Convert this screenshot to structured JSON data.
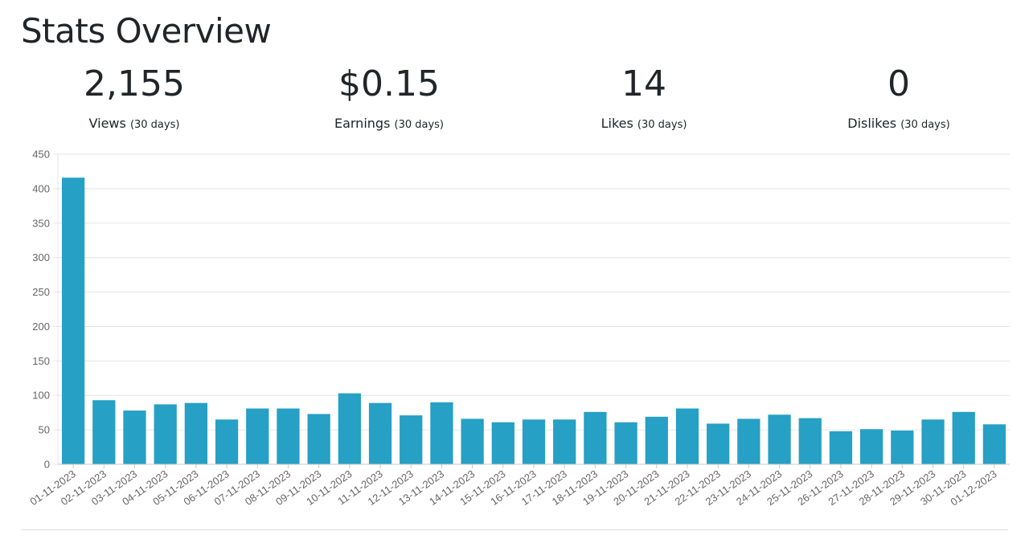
{
  "header": {
    "title": "Stats Overview"
  },
  "stats": [
    {
      "value": "2,155",
      "label": "Views",
      "period": "(30 days)"
    },
    {
      "value": "$0.15",
      "label": "Earnings",
      "period": "(30 days)"
    },
    {
      "value": "14",
      "label": "Likes",
      "period": "(30 days)"
    },
    {
      "value": "0",
      "label": "Dislikes",
      "period": "(30 days)"
    }
  ],
  "colors": {
    "bar": "#26a0c4",
    "grid": "#e5e5e5",
    "tick_text": "#666666"
  },
  "chart_data": {
    "type": "bar",
    "title": "",
    "xlabel": "",
    "ylabel": "",
    "ylim": [
      0,
      450
    ],
    "yticks": [
      0,
      50,
      100,
      150,
      200,
      250,
      300,
      350,
      400,
      450
    ],
    "grid": true,
    "categories": [
      "01-11-2023",
      "02-11-2023",
      "03-11-2023",
      "04-11-2023",
      "05-11-2023",
      "06-11-2023",
      "07-11-2023",
      "08-11-2023",
      "09-11-2023",
      "10-11-2023",
      "11-11-2023",
      "12-11-2023",
      "13-11-2023",
      "14-11-2023",
      "15-11-2023",
      "16-11-2023",
      "17-11-2023",
      "18-11-2023",
      "19-11-2023",
      "20-11-2023",
      "21-11-2023",
      "22-11-2023",
      "23-11-2023",
      "24-11-2023",
      "25-11-2023",
      "26-11-2023",
      "27-11-2023",
      "28-11-2023",
      "29-11-2023",
      "30-11-2023",
      "01-12-2023"
    ],
    "values": [
      416,
      93,
      78,
      87,
      89,
      65,
      81,
      81,
      73,
      103,
      89,
      71,
      90,
      66,
      61,
      65,
      65,
      76,
      61,
      69,
      81,
      59,
      66,
      72,
      67,
      48,
      51,
      49,
      65,
      76,
      58
    ]
  }
}
